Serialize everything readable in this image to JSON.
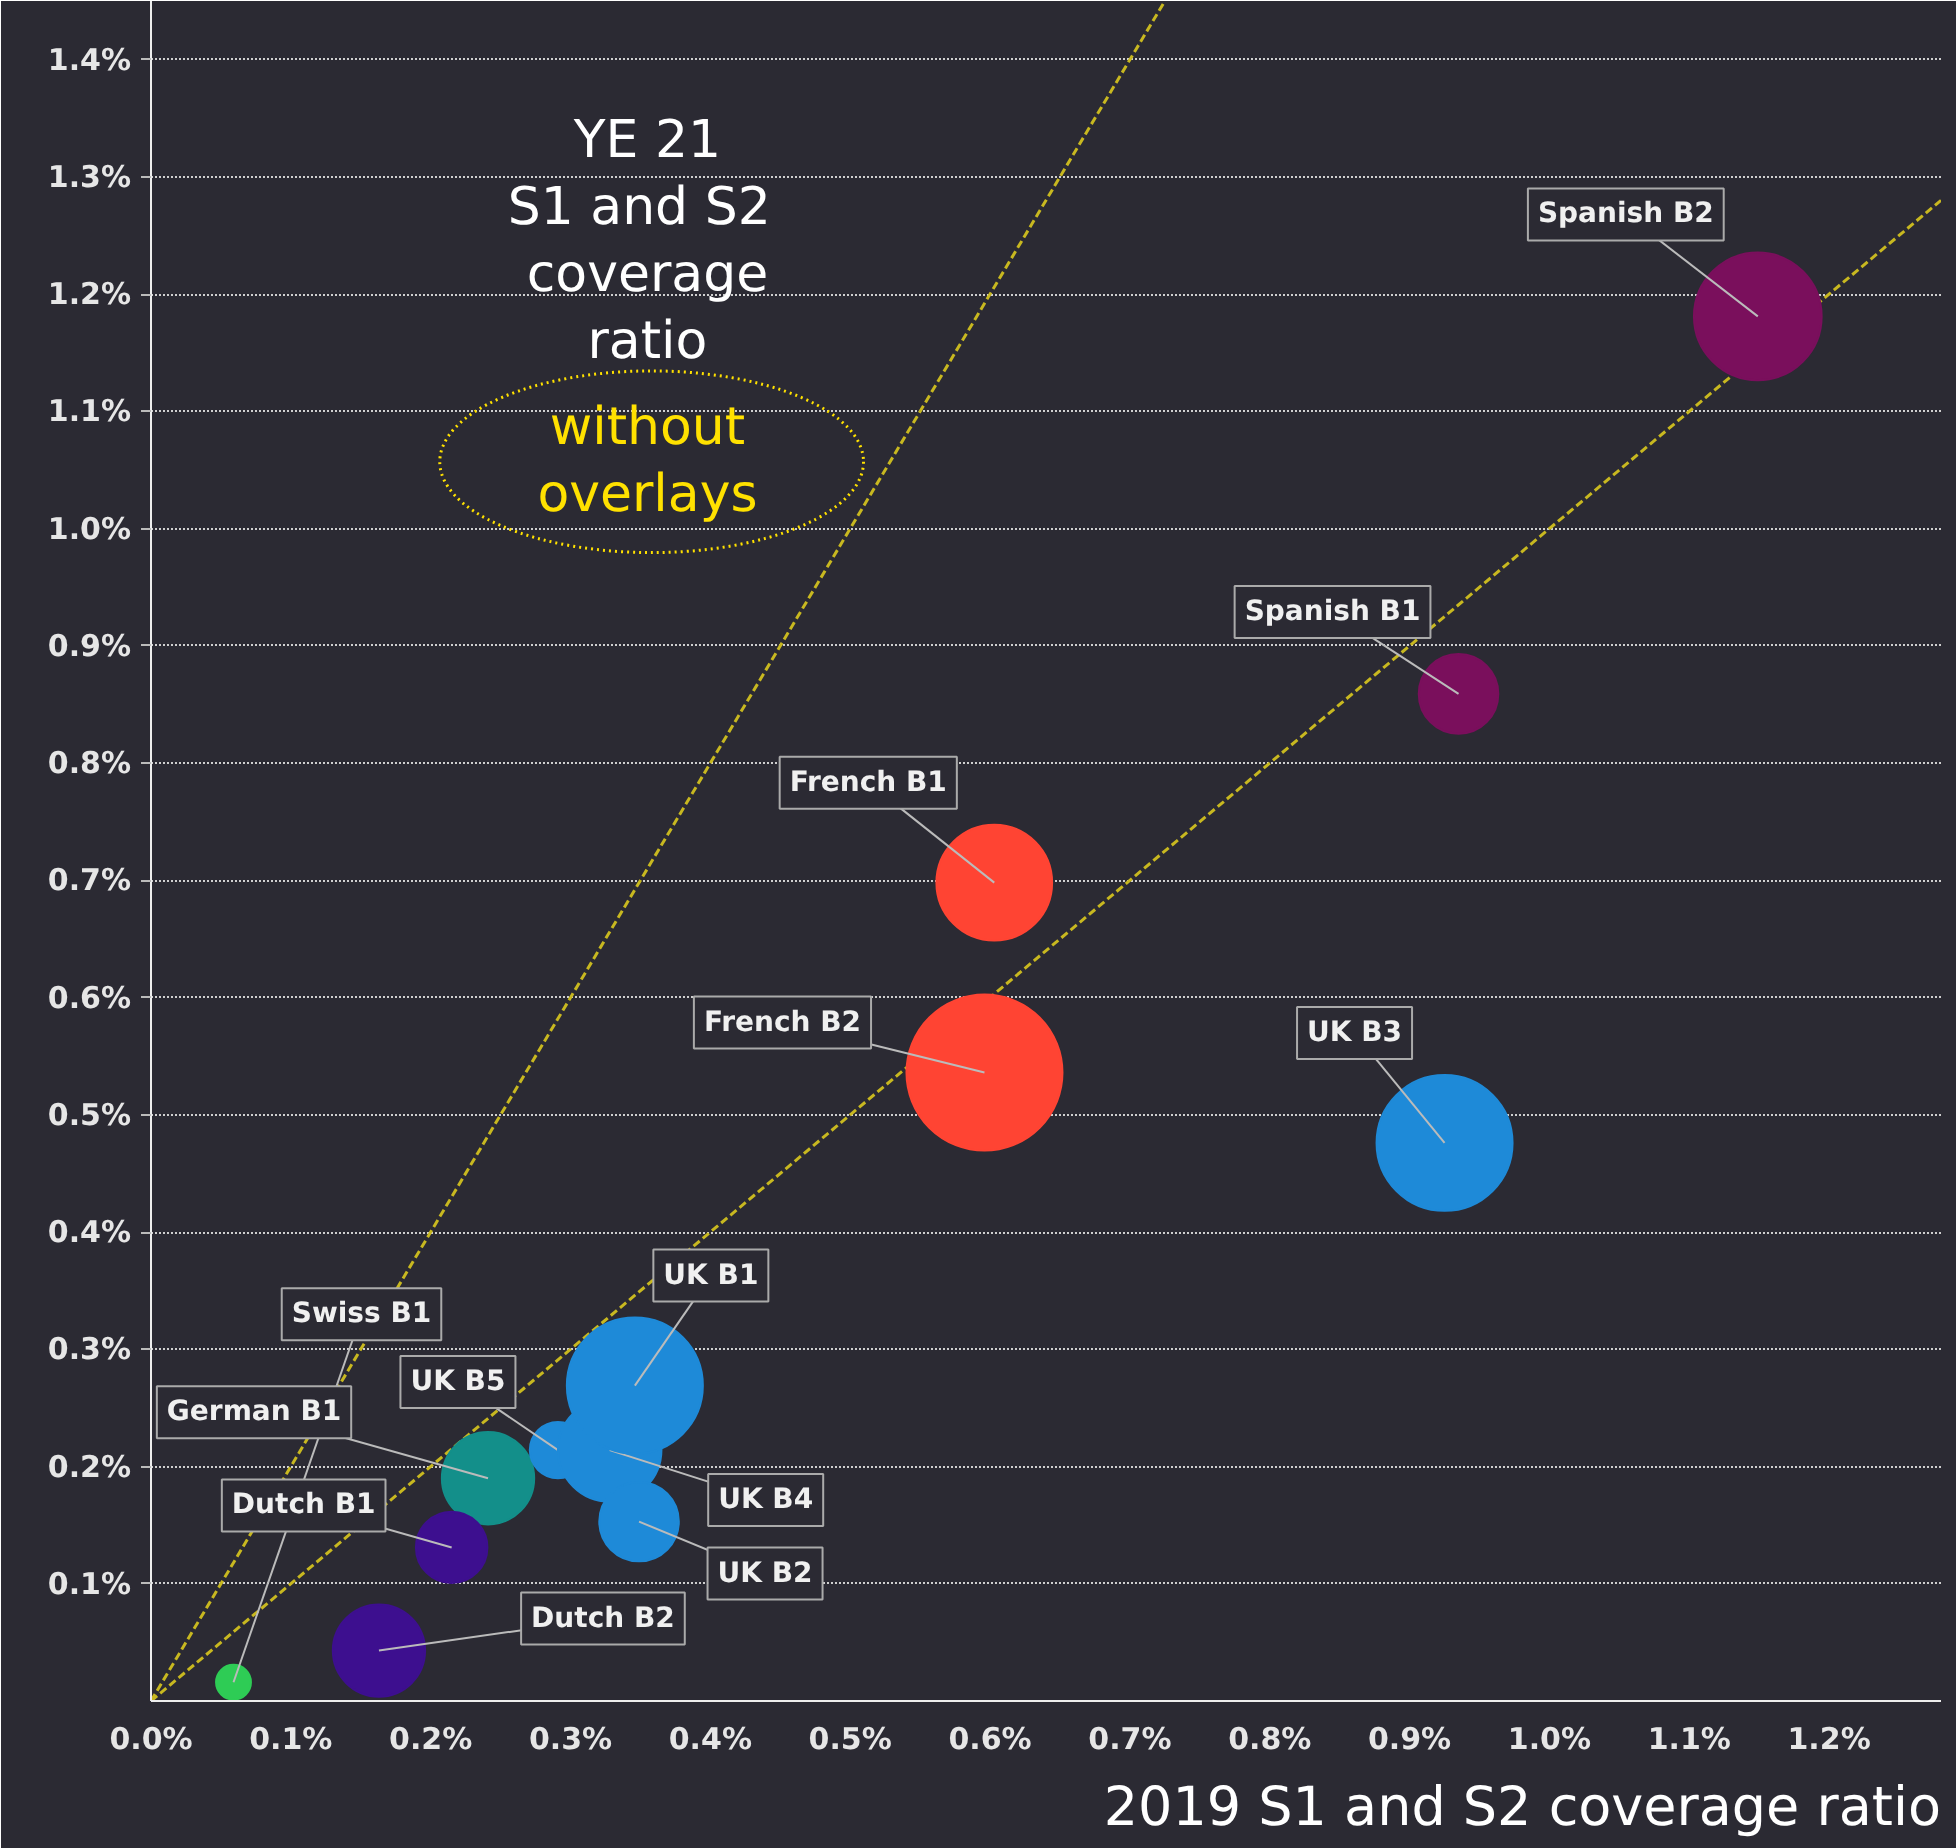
{
  "chart_data": {
    "type": "bubble",
    "xlabel": "2019 S1 and S2 coverage ratio",
    "annotations": [
      "YE 21\nS1 and  S2\ncoverage\nratio",
      "without\noverlays"
    ],
    "xlim": [
      0,
      1.28
    ],
    "ylim": [
      0,
      1.45
    ],
    "xticks": [
      {
        "value": 0,
        "label": "0.0%"
      },
      {
        "value": 0.1,
        "label": "0.1%"
      },
      {
        "value": 0.2,
        "label": "0.2%"
      },
      {
        "value": 0.3,
        "label": "0.3%"
      },
      {
        "value": 0.4,
        "label": "0.4%"
      },
      {
        "value": 0.5,
        "label": "0.5%"
      },
      {
        "value": 0.6,
        "label": "0.6%"
      },
      {
        "value": 0.7,
        "label": "0.7%"
      },
      {
        "value": 0.8,
        "label": "0.8%"
      },
      {
        "value": 0.9,
        "label": "0.9%"
      },
      {
        "value": 1.0,
        "label": "1.0%"
      },
      {
        "value": 1.1,
        "label": "1.1%"
      },
      {
        "value": 1.2,
        "label": "1.2%"
      }
    ],
    "yticks": [
      {
        "value": 0.1,
        "label": "0.1%"
      },
      {
        "value": 0.2,
        "label": "0.2%"
      },
      {
        "value": 0.3,
        "label": "0.3%"
      },
      {
        "value": 0.4,
        "label": "0.4%"
      },
      {
        "value": 0.5,
        "label": "0.5%"
      },
      {
        "value": 0.6,
        "label": "0.6%"
      },
      {
        "value": 0.7,
        "label": "0.7%"
      },
      {
        "value": 0.8,
        "label": "0.8%"
      },
      {
        "value": 0.9,
        "label": "0.9%"
      },
      {
        "value": 1.0,
        "label": "1.0%"
      },
      {
        "value": 1.1,
        "label": "1.1%"
      },
      {
        "value": 1.2,
        "label": "1.2%"
      },
      {
        "value": 1.3,
        "label": "1.3%"
      },
      {
        "value": 1.4,
        "label": "1.4%"
      }
    ],
    "grid": "y",
    "legend": false,
    "series": [
      {
        "type": "line",
        "color": "#c8b820",
        "line_style": "dashed",
        "x": [
          0,
          0.725
        ],
        "values": [
          0,
          1.45
        ]
      },
      {
        "type": "line",
        "color": "#c8b820",
        "line_style": "dashed",
        "x": [
          0,
          1.28
        ],
        "values": [
          0,
          1.28
        ]
      },
      {
        "name": "Swiss B1",
        "color": "#2ecc55",
        "x": [
          0.059
        ],
        "values": [
          0.016
        ],
        "sizes": [
          0.05
        ]
      },
      {
        "name": "German B1",
        "color": "#138f8a",
        "x": [
          0.241
        ],
        "values": [
          0.19
        ],
        "sizes": [
          0.35
        ]
      },
      {
        "name": "Dutch B1",
        "color": "#3d0f8f",
        "x": [
          0.215
        ],
        "values": [
          0.131
        ],
        "sizes": [
          0.21
        ]
      },
      {
        "name": "Dutch B2",
        "color": "#3d0f8f",
        "x": [
          0.163
        ],
        "values": [
          0.043
        ],
        "sizes": [
          0.35
        ]
      },
      {
        "name": "UK B5",
        "color": "#1e8ad8",
        "x": [
          0.291
        ],
        "values": [
          0.214
        ],
        "sizes": [
          0.13
        ]
      },
      {
        "name": "UK B4",
        "color": "#1e8ad8",
        "x": [
          0.328
        ],
        "values": [
          0.214
        ],
        "sizes": [
          0.44
        ]
      },
      {
        "name": "UK B1",
        "color": "#1e8ad8",
        "x": [
          0.346
        ],
        "values": [
          0.269
        ],
        "sizes": [
          0.76
        ]
      },
      {
        "name": "UK B2",
        "color": "#1e8ad8",
        "x": [
          0.349
        ],
        "values": [
          0.153
        ],
        "sizes": [
          0.26
        ]
      },
      {
        "name": "French B1",
        "color": "#ff4433",
        "x": [
          0.603
        ],
        "values": [
          0.698
        ],
        "sizes": [
          0.55
        ]
      },
      {
        "name": "French B2",
        "color": "#ff4433",
        "x": [
          0.596
        ],
        "values": [
          0.536
        ],
        "sizes": [
          1
        ]
      },
      {
        "name": "UK B3",
        "color": "#1e8ad8",
        "x": [
          0.925
        ],
        "values": [
          0.476
        ],
        "sizes": [
          0.76
        ]
      },
      {
        "name": "Spanish B1",
        "color": "#7a0f5c",
        "x": [
          0.935
        ],
        "values": [
          0.859
        ],
        "sizes": [
          0.26
        ]
      },
      {
        "name": "Spanish B2",
        "color": "#7a0f5c",
        "x": [
          1.149
        ],
        "values": [
          1.181
        ],
        "sizes": [
          0.67
        ]
      }
    ]
  }
}
